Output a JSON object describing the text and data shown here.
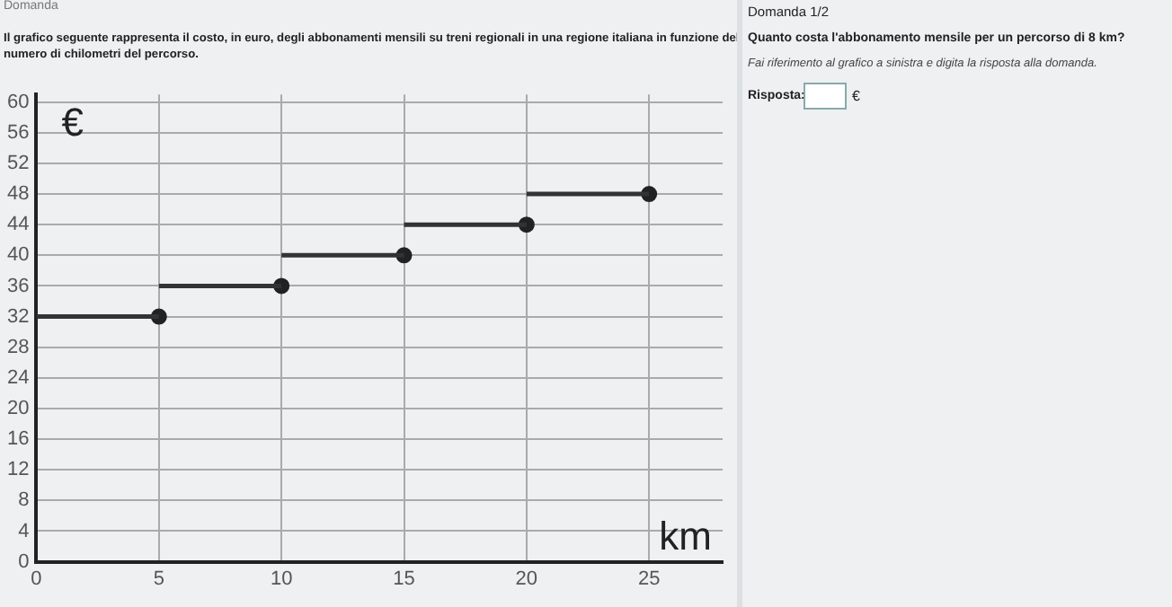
{
  "chart_data": {
    "type": "line",
    "title": "Il grafico seguente rappresenta il costo, in euro, degli abbonamenti mensili su treni regionali in una regione italiana in funzione del numero di chilometri del percorso.",
    "xlabel": "km",
    "ylabel": "€",
    "annotations": [
      "Domanda",
      "Domanda 1/2",
      "Quanto costa l'abbonamento mensile per un percorso di 8 km?",
      "Fai riferimento al grafico a sinistra e digita la risposta alla domanda.",
      "Risposta:",
      "€"
    ],
    "series": [
      {
        "color": "#333333",
        "marker": "none",
        "x": [
          0,
          5
        ],
        "values": [
          32,
          32
        ]
      },
      {
        "color": "#333333",
        "marker": "none",
        "x": [
          5,
          10
        ],
        "values": [
          36,
          36
        ]
      },
      {
        "color": "#333333",
        "marker": "none",
        "x": [
          10,
          15
        ],
        "values": [
          40,
          40
        ]
      },
      {
        "color": "#333333",
        "marker": "none",
        "x": [
          15,
          20
        ],
        "values": [
          44,
          44
        ]
      },
      {
        "color": "#333333",
        "marker": "none",
        "x": [
          20,
          25
        ],
        "values": [
          48,
          48
        ]
      },
      {
        "type": "scatter",
        "color": "#222222",
        "marker": "circle",
        "x": [
          5,
          10,
          15,
          20,
          25
        ],
        "values": [
          32,
          36,
          40,
          44,
          48
        ]
      }
    ],
    "xlim": [
      0,
      28
    ],
    "xticks": [
      0,
      5,
      10,
      15,
      20,
      25
    ],
    "ylim": [
      0,
      61
    ],
    "yticks": [
      0,
      4,
      8,
      12,
      16,
      20,
      24,
      28,
      32,
      36,
      40,
      44,
      48,
      52,
      56,
      60
    ],
    "grid": true,
    "legend": false
  }
}
